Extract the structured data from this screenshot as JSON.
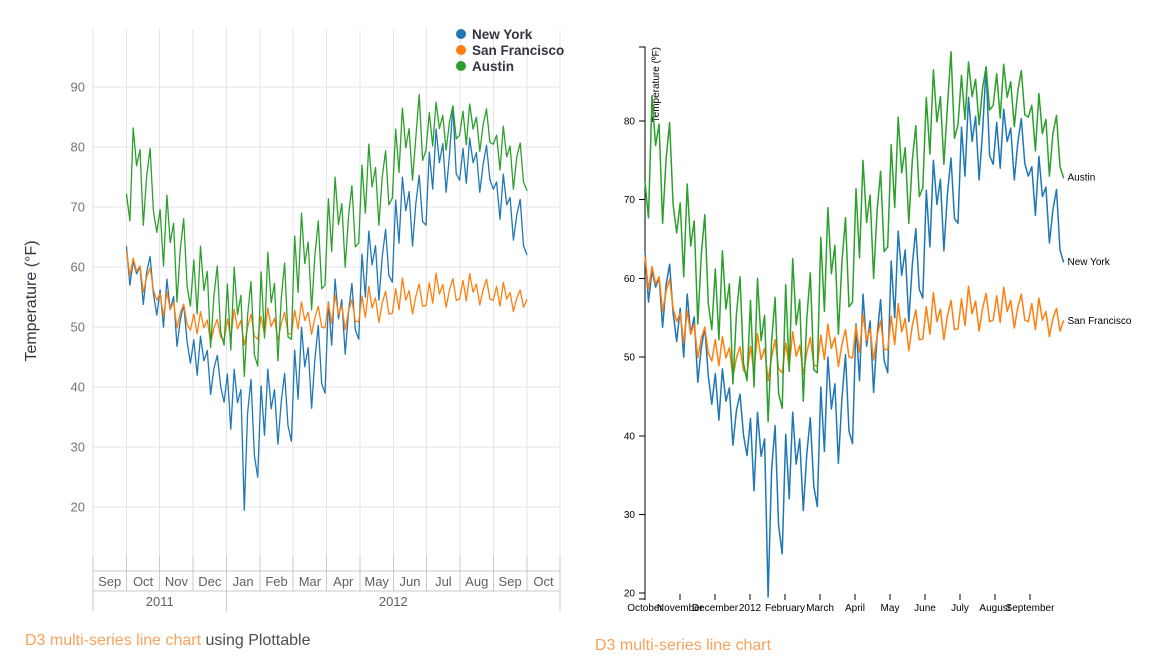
{
  "page": {
    "background": "#ffffff"
  },
  "captions": {
    "left": {
      "link_text": "D3 multi-series line chart",
      "suffix_text": " using Plottable",
      "link_color": "#f7a35c",
      "text_color": "#4d4d4d"
    },
    "right": {
      "link_text": "D3 multi-series line chart",
      "link_color": "#f7a35c"
    }
  },
  "colors": {
    "grid": "#e4e4e9",
    "band_border": "#c9c9cf",
    "left_tick_label": "#75747e",
    "left_band_label": "#5f5e68",
    "right_axis": "#000000",
    "new_york": "#1f77b4",
    "san_francisco": "#ff7f0e",
    "austin": "#2ca02c"
  },
  "chart_data": [
    {
      "type": "line",
      "library": "Plottable",
      "y_label": "Temperature (°F)",
      "y_ticks": [
        20,
        30,
        40,
        50,
        60,
        70,
        80,
        90
      ],
      "x_month_labels": [
        "Sep",
        "Oct",
        "Nov",
        "Dec",
        "Jan",
        "Feb",
        "Mar",
        "Apr",
        "May",
        "Jun",
        "Jul",
        "Aug",
        "Sep",
        "Oct"
      ],
      "x_year_labels": [
        {
          "label": "2011",
          "span_months": [
            0,
            4
          ]
        },
        {
          "label": "2012",
          "span_months": [
            4,
            14
          ]
        }
      ],
      "x_range": [
        "2011-09-01",
        "2012-10-31"
      ],
      "data_range": [
        "2011-10-01",
        "2012-09-30"
      ],
      "grid": true,
      "legend_position": "top-right",
      "legend": [
        {
          "label": "New York",
          "color": "#1f77b4"
        },
        {
          "label": "San Francisco",
          "color": "#ff7f0e"
        },
        {
          "label": "Austin",
          "color": "#2ca02c"
        }
      ],
      "points_per_series": 120,
      "series": [
        {
          "name": "New York",
          "color": "#1f77b4",
          "values": [
            63.4,
            57,
            61,
            58.9,
            60.1,
            53.8,
            59.2,
            61.8,
            55.6,
            52,
            56.2,
            50,
            58,
            52.9,
            55.1,
            46.8,
            51.2,
            53.8,
            47.6,
            44,
            47.9,
            42,
            48.5,
            44.4,
            46.1,
            38.8,
            43.2,
            45.3,
            40.1,
            37.5,
            42.2,
            33,
            43,
            37.4,
            39.6,
            19.5,
            35.7,
            41.3,
            28.6,
            25,
            40.2,
            32,
            43,
            36.4,
            39.6,
            30.5,
            37.7,
            42.3,
            33.6,
            31,
            46.2,
            38,
            50,
            43.4,
            46.6,
            36.5,
            44.7,
            50.3,
            40.6,
            39,
            54.2,
            47,
            58,
            51.4,
            54.6,
            45.5,
            52.7,
            57.3,
            49.6,
            48,
            62.2,
            55,
            66,
            60.4,
            63.6,
            54.5,
            61.7,
            66.3,
            58.6,
            57.5,
            71.2,
            64,
            75,
            69.4,
            72.6,
            63.5,
            70.7,
            75.3,
            67.6,
            67,
            79.2,
            73,
            83,
            77.4,
            80.6,
            72.5,
            78.7,
            86.8,
            75.6,
            74.5,
            79.8,
            74,
            81.5,
            77.4,
            79.1,
            72.5,
            77.2,
            80.3,
            74.6,
            73,
            74.2,
            68,
            75.5,
            70.4,
            71.6,
            64.5,
            68.7,
            71.3,
            63.6,
            62.1
          ]
        },
        {
          "name": "San Francisco",
          "color": "#ff7f0e",
          "values": [
            62.7,
            58.6,
            61.5,
            59.3,
            60.2,
            55.8,
            58.4,
            59.9,
            56.2,
            54.5,
            55.6,
            51.8,
            55.9,
            52.9,
            54.2,
            49.9,
            52.4,
            53.8,
            50.5,
            49.5,
            52.2,
            48.9,
            52.6,
            49.9,
            51.2,
            47.4,
            49.9,
            51.3,
            48.3,
            47.8,
            51.4,
            48.2,
            53,
            49.7,
            51.1,
            47,
            50,
            52.2,
            48.5,
            48,
            51.8,
            48.7,
            53.2,
            50.1,
            51.5,
            47.8,
            50.6,
            52.5,
            49,
            48.8,
            52.8,
            49.7,
            54.2,
            51.1,
            52.5,
            48.8,
            51.6,
            53.5,
            50,
            49.9,
            54,
            50.6,
            55.4,
            52.1,
            53.6,
            49.6,
            52.7,
            54.6,
            51,
            50.9,
            55.2,
            51.6,
            56.8,
            53.2,
            54.9,
            50.8,
            54,
            56,
            52.2,
            52.3,
            56.4,
            52.9,
            58.2,
            54.5,
            56.1,
            52.2,
            55.2,
            57.2,
            53.5,
            53.6,
            57.4,
            54,
            59,
            55.5,
            57.1,
            53.3,
            56.2,
            58.1,
            54.5,
            54.7,
            57.8,
            54.4,
            58.9,
            55.8,
            57.2,
            53.7,
            56.3,
            58,
            54.7,
            54.5,
            56.8,
            53.5,
            57.5,
            54.7,
            55.8,
            52.6,
            54.9,
            56.2,
            53.3,
            54.6
          ]
        },
        {
          "name": "Austin",
          "color": "#2ca02c",
          "values": [
            72.2,
            67.7,
            83.2,
            76.9,
            79.6,
            67,
            75.2,
            79.8,
            69.4,
            65.8,
            69.6,
            60.2,
            72,
            64.1,
            67.3,
            54.2,
            63,
            68.1,
            56.8,
            53.5,
            61.2,
            52.2,
            63.5,
            56.1,
            59.3,
            46.6,
            55.4,
            60.2,
            49.2,
            47,
            57.2,
            46.2,
            60,
            52.1,
            55.3,
            41.8,
            52,
            57.6,
            45.4,
            43.5,
            59.2,
            48.2,
            62.5,
            54.1,
            57.3,
            44.4,
            54.9,
            60.7,
            48.4,
            48,
            65.2,
            55.8,
            69,
            60.6,
            64.2,
            52.9,
            62,
            67.7,
            56.4,
            57,
            71.4,
            62.6,
            75,
            67.1,
            70.6,
            60,
            68.6,
            73.6,
            63.4,
            64,
            77,
            69,
            80.5,
            73.4,
            76.6,
            67,
            75,
            79.4,
            70.4,
            71.5,
            83,
            75.8,
            86.5,
            79.9,
            83.1,
            74.5,
            81.8,
            88.8,
            77.8,
            79.5,
            85.8,
            80.2,
            87.5,
            83.1,
            85.3,
            79.5,
            84.2,
            86.9,
            81.4,
            82,
            86,
            80.4,
            87.2,
            83,
            85,
            79.3,
            83.8,
            86.4,
            80.8,
            80.5,
            82,
            76.2,
            83.5,
            78.4,
            80.2,
            73,
            78.4,
            80.7,
            74.2,
            72.8
          ]
        }
      ]
    },
    {
      "type": "line",
      "library": "d3",
      "y_label": "Temperature (ºF)",
      "y_ticks": [
        20,
        30,
        40,
        50,
        60,
        70,
        80
      ],
      "x_tick_labels": [
        "October",
        "November",
        "December",
        "2012",
        "February",
        "March",
        "April",
        "May",
        "June",
        "July",
        "August",
        "September"
      ],
      "x_range": [
        "2011-10-01",
        "2012-09-30"
      ],
      "grid": false,
      "series_source_chart": 0,
      "series_note": "same three series (New York, San Francisco, Austin) as chart 0",
      "end_labels": [
        "Austin",
        "New York",
        "San Francisco"
      ]
    }
  ]
}
